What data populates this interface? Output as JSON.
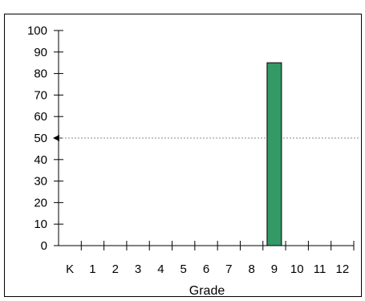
{
  "chart_data": {
    "type": "bar",
    "title": "",
    "xlabel": "Grade",
    "ylabel": "",
    "categories": [
      "K",
      "1",
      "2",
      "3",
      "4",
      "5",
      "6",
      "7",
      "8",
      "9",
      "10",
      "11",
      "12"
    ],
    "values": [
      null,
      null,
      null,
      null,
      null,
      null,
      null,
      null,
      null,
      85,
      null,
      null,
      null
    ],
    "ylim": [
      0,
      100
    ],
    "yticks": [
      "0",
      "10",
      "20",
      "30",
      "40",
      "50",
      "60",
      "70",
      "80",
      "90",
      "100"
    ],
    "reference_line": {
      "value": 50,
      "style": "dotted",
      "marker": "left-arrow"
    },
    "bar_color": "#339966",
    "grid": false,
    "legend": "none"
  }
}
